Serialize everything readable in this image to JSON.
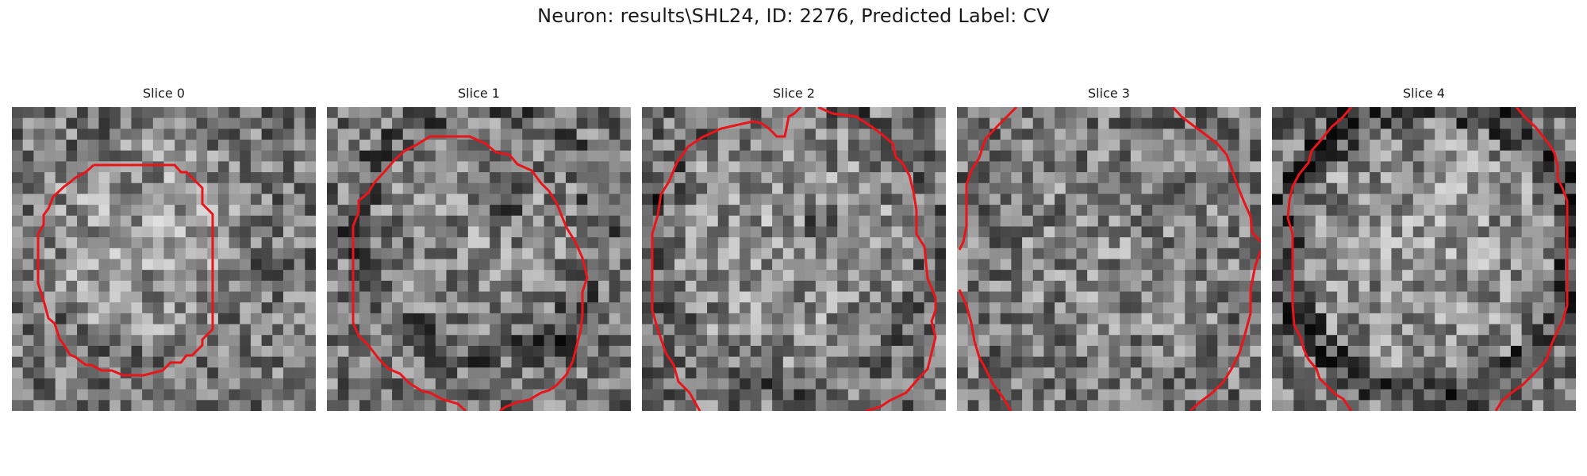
{
  "figure": {
    "title": "Neuron: results\\SHL24, ID: 2276, Predicted Label: CV"
  },
  "contour_color": "#e8151b",
  "slices": [
    {
      "label": "Slice 0",
      "seed": 11,
      "center": [
        0.45,
        0.42
      ],
      "radius": 0.36,
      "bright": 0.62,
      "ring": 0.0,
      "dark_spots": []
    },
    {
      "label": "Slice 1",
      "seed": 29,
      "center": [
        0.5,
        0.4
      ],
      "radius": 0.4,
      "bright": 0.56,
      "ring": 0.1,
      "dark_spots": [
        [
          0.58,
          0.3,
          0.1
        ],
        [
          0.75,
          0.8,
          0.09
        ]
      ]
    },
    {
      "label": "Slice 2",
      "seed": 47,
      "center": [
        0.5,
        0.45
      ],
      "radius": 0.45,
      "bright": 0.6,
      "ring": 0.08,
      "dark_spots": [
        [
          0.58,
          0.38,
          0.07
        ],
        [
          0.05,
          0.3,
          0.06
        ]
      ]
    },
    {
      "label": "Slice 3",
      "seed": 83,
      "center": [
        0.5,
        0.5
      ],
      "radius": 0.5,
      "bright": 0.55,
      "ring": 0.0,
      "dark_spots": []
    },
    {
      "label": "Slice 4",
      "seed": 97,
      "center": [
        0.52,
        0.47
      ],
      "radius": 0.48,
      "bright": 0.6,
      "ring": 0.22,
      "dark_spots": []
    }
  ]
}
